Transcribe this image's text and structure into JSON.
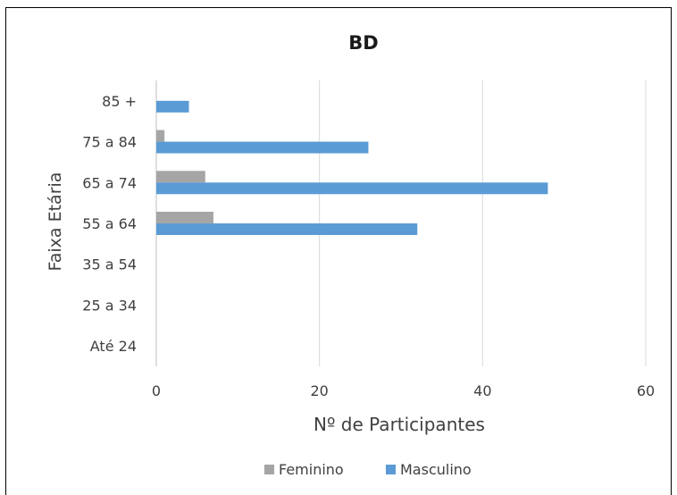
{
  "chart_data": {
    "type": "bar",
    "orientation": "horizontal",
    "title": "BD",
    "xlabel": "Nº de Participantes",
    "ylabel": "Faixa Etária",
    "categories": [
      "Até 24",
      "25 a 34",
      "35 a 54",
      "55 a 64",
      "65 a 74",
      "75 a 84",
      "85 +"
    ],
    "series": [
      {
        "name": "Feminino",
        "values": [
          0,
          0,
          0,
          7,
          6,
          1,
          0
        ],
        "color": "#a5a5a5"
      },
      {
        "name": "Masculino",
        "values": [
          0,
          0,
          0,
          32,
          48,
          26,
          4
        ],
        "color": "#5b9bd5"
      }
    ],
    "xlim": [
      0,
      60
    ],
    "xticks": [
      "0",
      "20",
      "40",
      "60"
    ],
    "grid": "vertical",
    "legend": "bottom"
  }
}
